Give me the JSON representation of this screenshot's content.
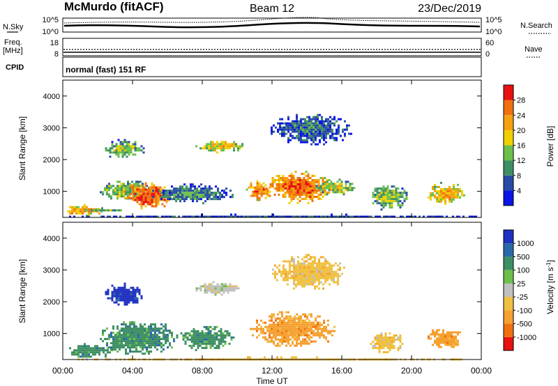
{
  "header": {
    "station": "McMurdo (fitACF)",
    "beam": "Beam 12",
    "date": "23/Dec/2019"
  },
  "strip_labels": {
    "nsky": "N.Sky",
    "nsky_ticks": [
      "10^5",
      "10^0"
    ],
    "nsearch": "N.Search",
    "nsearch_ticks": [
      "10^5",
      "10^0"
    ],
    "freq": "Freq.",
    "freq_unit": "[MHz]",
    "freq_ticks": [
      "18",
      "8"
    ],
    "nave": "Nave",
    "nave_ticks": [
      "60",
      "0"
    ],
    "cpid": "CPID",
    "cpid_value": "normal (fast) 151 RF"
  },
  "colors": {
    "power": [
      "#0a14e6",
      "#2a4aa8",
      "#3f8f64",
      "#6cc04a",
      "#f0d000",
      "#f5a010",
      "#f07010",
      "#e81010"
    ],
    "velocity": [
      "#2030c0",
      "#2a6aa8",
      "#3f8f64",
      "#6cc04a",
      "#c0c0c0",
      "#f0c040",
      "#f5a030",
      "#f07010",
      "#e81010"
    ]
  },
  "chart_data": [
    {
      "type": "heatmap",
      "panel": "power",
      "ylabel": "Slant Range [km]",
      "ylim": [
        180,
        4500
      ],
      "yticks": [
        "1000",
        "2000",
        "3000",
        "4000"
      ],
      "x_range": [
        "00:00",
        "24:00"
      ],
      "colorbar": {
        "label": "Power [dB]",
        "ticks": [
          "4",
          "8",
          "12",
          "16",
          "20",
          "24",
          "28"
        ],
        "range": [
          0,
          30
        ]
      },
      "regions": [
        {
          "t0": 0.0,
          "t1": 2.2,
          "r0": 250,
          "r1": 600,
          "level": 22
        },
        {
          "t0": 1.0,
          "t1": 3.5,
          "r0": 380,
          "r1": 500,
          "level": 12
        },
        {
          "t0": 2.3,
          "t1": 4.6,
          "r0": 2050,
          "r1": 2650,
          "level": 14
        },
        {
          "t0": 2.0,
          "t1": 5.0,
          "r0": 750,
          "r1": 1400,
          "level": 14
        },
        {
          "t0": 3.5,
          "t1": 6.2,
          "r0": 450,
          "r1": 1350,
          "level": 26
        },
        {
          "t0": 5.0,
          "t1": 9.8,
          "r0": 650,
          "r1": 1250,
          "level": 10
        },
        {
          "t0": 7.6,
          "t1": 10.3,
          "r0": 2250,
          "r1": 2650,
          "level": 18
        },
        {
          "t0": 10.5,
          "t1": 12.0,
          "r0": 750,
          "r1": 1350,
          "level": 24
        },
        {
          "t0": 11.5,
          "t1": 15.5,
          "r0": 650,
          "r1": 1650,
          "level": 24
        },
        {
          "t0": 11.8,
          "t1": 16.5,
          "r0": 2500,
          "r1": 3500,
          "level": 8
        },
        {
          "t0": 14.5,
          "t1": 16.8,
          "r0": 900,
          "r1": 1400,
          "level": 16
        },
        {
          "t0": 17.5,
          "t1": 19.8,
          "r0": 450,
          "r1": 1250,
          "level": 14
        },
        {
          "t0": 20.8,
          "t1": 23.0,
          "r0": 600,
          "r1": 1300,
          "level": 20
        },
        {
          "t0": 0.0,
          "t1": 24.0,
          "r0": 180,
          "r1": 300,
          "level": 6
        }
      ]
    },
    {
      "type": "heatmap",
      "panel": "velocity",
      "ylabel": "Slant Range [km]",
      "ylim": [
        180,
        4500
      ],
      "yticks": [
        "1000",
        "2000",
        "3000",
        "4000"
      ],
      "xticks": [
        "00:00",
        "04:00",
        "08:00",
        "12:00",
        "16:00",
        "20:00",
        "00:00"
      ],
      "xlabel": "Time UT",
      "colorbar": {
        "label": "Velocity [m s^-1]",
        "ticks": [
          "1000",
          "500",
          "100",
          "25",
          "-25",
          "-100",
          "-500",
          "-1000"
        ]
      },
      "regions": [
        {
          "t0": 0.0,
          "t1": 3.0,
          "r0": 250,
          "r1": 700,
          "level": "100"
        },
        {
          "t0": 2.0,
          "t1": 6.5,
          "r0": 350,
          "r1": 1450,
          "level": "100"
        },
        {
          "t0": 2.3,
          "t1": 4.6,
          "r0": 1900,
          "r1": 2600,
          "level": "1000"
        },
        {
          "t0": 6.5,
          "t1": 9.8,
          "r0": 500,
          "r1": 1300,
          "level": "100"
        },
        {
          "t0": 7.5,
          "t1": 10.2,
          "r0": 2250,
          "r1": 2650,
          "level": "25"
        },
        {
          "t0": 10.6,
          "t1": 15.6,
          "r0": 600,
          "r1": 1700,
          "level": "-100"
        },
        {
          "t0": 12.0,
          "t1": 16.2,
          "r0": 2400,
          "r1": 3500,
          "level": "-25"
        },
        {
          "t0": 17.5,
          "t1": 19.5,
          "r0": 400,
          "r1": 1100,
          "level": "-25"
        },
        {
          "t0": 20.8,
          "t1": 23.0,
          "r0": 550,
          "r1": 1200,
          "level": "-100"
        },
        {
          "t0": 0.0,
          "t1": 24.0,
          "r0": 180,
          "r1": 280,
          "level": "-25"
        }
      ]
    }
  ]
}
